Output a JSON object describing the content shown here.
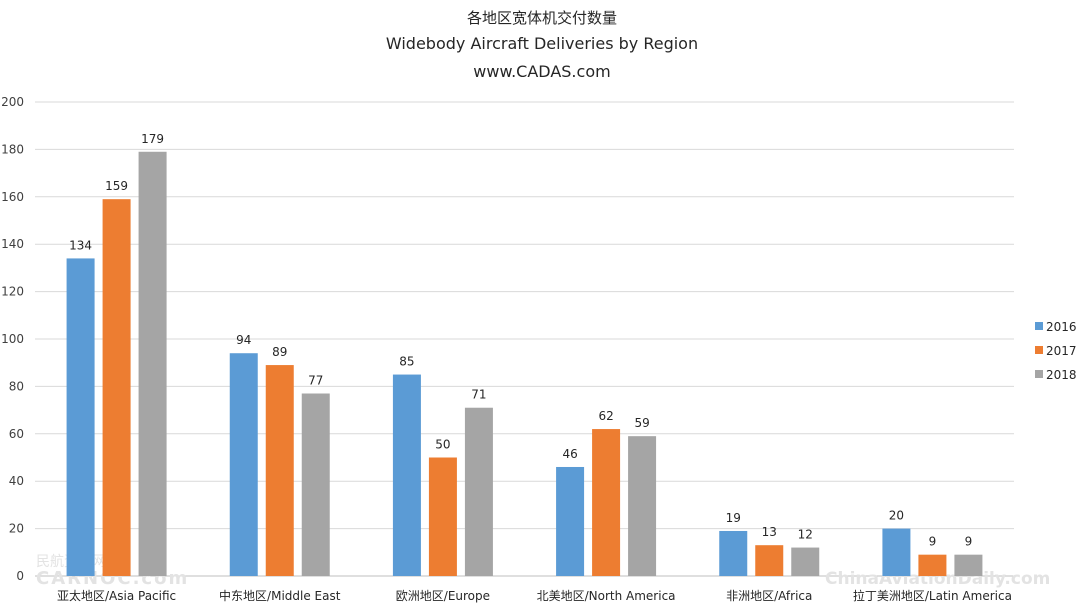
{
  "chart_data": {
    "type": "bar",
    "title": "各地区宽体机交付数量",
    "subtitle": "Widebody Aircraft Deliveries by Region",
    "source": "www.CADAS.com",
    "categories": [
      "亚太地区/Asia Pacific",
      "中东地区/Middle East",
      "欧洲地区/Europe",
      "北美地区/North America",
      "非洲地区/Africa",
      "拉丁美洲地区/Latin America"
    ],
    "series": [
      {
        "name": "2016",
        "color": "#5B9BD5",
        "values": [
          134,
          94,
          85,
          46,
          19,
          20
        ]
      },
      {
        "name": "2017",
        "color": "#ED7D31",
        "values": [
          159,
          89,
          50,
          62,
          13,
          9
        ]
      },
      {
        "name": "2018",
        "color": "#A5A5A5",
        "values": [
          179,
          77,
          71,
          59,
          12,
          9
        ]
      }
    ],
    "ylim": [
      0,
      200
    ],
    "yticks": [
      0,
      20,
      40,
      60,
      80,
      100,
      120,
      140,
      160,
      180,
      200
    ],
    "grid": true,
    "legend_position": "right",
    "watermarks": [
      "民航资源网 CARNOC.com",
      "ChinaAviationDaily.com"
    ]
  }
}
